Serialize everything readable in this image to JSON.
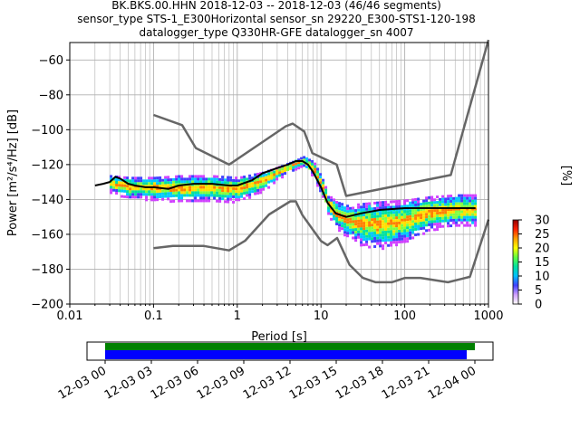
{
  "title_lines": [
    "BK.BKS.00.HHN   2018-12-03 -- 2018-12-03  (46/46 segments)",
    "sensor_type STS-1_E300Horizontal sensor_sn 29220_E300-STS1-120-198",
    "datalogger_type Q330HR-GFE datalogger_sn 4007"
  ],
  "colorbar": {
    "label": "[%]",
    "ticks": [
      "0",
      "5",
      "10",
      "15",
      "20",
      "25",
      "30"
    ],
    "colors": [
      "#ffffff",
      "#d0a0ff",
      "#4040ff",
      "#00c0ff",
      "#00e0a0",
      "#60ff40",
      "#ffff00",
      "#ffa000",
      "#ff2000",
      "#900000"
    ]
  },
  "timeline": {
    "tick_labels": [
      "12-03 00",
      "12-03 03",
      "12-03 06",
      "12-03 09",
      "12-03 12",
      "12-03 15",
      "12-03 18",
      "12-03 21",
      "12-04 00"
    ],
    "bar_colors": {
      "upper": "#008000",
      "lower": "#0000ff"
    }
  },
  "chart_data": {
    "type": "line",
    "xlabel": "Period [s]",
    "ylabel": "Power [m²/s⁴/Hz] [dB]",
    "xscale": "log",
    "xlim": [
      0.01,
      1000
    ],
    "ylim": [
      -200,
      -50
    ],
    "x_tick_labels": [
      "0.01",
      "0.1",
      "1",
      "10",
      "100",
      "1000"
    ],
    "y_tick_labels": [
      "−200",
      "−180",
      "−160",
      "−140",
      "−120",
      "−100",
      "−80",
      "−60"
    ],
    "grid": true,
    "series": [
      {
        "role": "high noise model",
        "color": "#666666",
        "x": [
          0.1,
          0.22,
          0.32,
          0.8,
          3.8,
          4.6,
          6.3,
          7.9,
          15.4,
          20,
          354.8,
          10000
        ],
        "y": [
          -91.5,
          -97.4,
          -110.5,
          -120,
          -98,
          -96.5,
          -101,
          -113.5,
          -120,
          -138,
          -126,
          -48.5
        ]
      },
      {
        "role": "low noise model",
        "color": "#666666",
        "x": [
          0.1,
          0.17,
          0.4,
          0.8,
          1.24,
          2.4,
          4.3,
          5,
          6,
          10,
          12,
          15.6,
          21.9,
          31.6,
          45,
          70,
          101,
          154,
          328,
          600,
          10000
        ],
        "y": [
          -168,
          -166.7,
          -166.7,
          -169.2,
          -163.7,
          -148.6,
          -141.1,
          -141.1,
          -149,
          -163.8,
          -166.2,
          -162.1,
          -177.5,
          -185,
          -187.5,
          -187.5,
          -185,
          -185,
          -187.5,
          -184.4,
          -151.5
        ]
      },
      {
        "role": "mode",
        "color": "#000000",
        "x": [
          0.02,
          0.025,
          0.03,
          0.035,
          0.04,
          0.05,
          0.06,
          0.08,
          0.1,
          0.15,
          0.2,
          0.3,
          0.5,
          0.8,
          1,
          1.5,
          2,
          3,
          4,
          5,
          6,
          7,
          8,
          10,
          12,
          15,
          20,
          30,
          50,
          100,
          200,
          400,
          700
        ],
        "y": [
          -132,
          -131,
          -130,
          -127,
          -128,
          -131,
          -132,
          -133,
          -133,
          -134,
          -132,
          -131,
          -131,
          -132,
          -132,
          -129,
          -125,
          -122,
          -120,
          -118,
          -118,
          -120,
          -124,
          -133,
          -142,
          -148,
          -150,
          -148,
          -146,
          -145,
          -145,
          -145,
          -145
        ]
      }
    ],
    "density_band": {
      "x": [
        0.03,
        0.05,
        0.1,
        0.2,
        0.5,
        1,
        2,
        3,
        5,
        6,
        8,
        10,
        12,
        15,
        20,
        30,
        50,
        100,
        200,
        400,
        700
      ],
      "upper": [
        -126,
        -127,
        -127,
        -126,
        -126,
        -127,
        -124,
        -121,
        -117,
        -115,
        -118,
        -127,
        -137,
        -141,
        -143,
        -142,
        -141,
        -140,
        -138,
        -137,
        -137
      ],
      "lower": [
        -136,
        -139,
        -140,
        -141,
        -141,
        -141,
        -135,
        -128,
        -122,
        -121,
        -127,
        -138,
        -149,
        -156,
        -161,
        -166,
        -168,
        -164,
        -157,
        -155,
        -155
      ]
    }
  }
}
